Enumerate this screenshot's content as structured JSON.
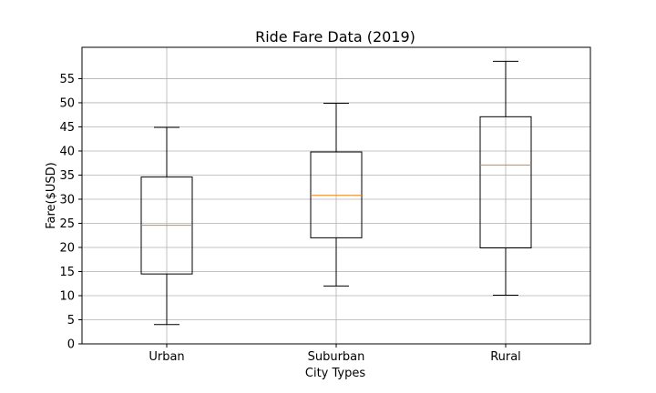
{
  "chart_data": {
    "type": "box",
    "title": "Ride Fare Data (2019)",
    "xlabel": "City Types",
    "ylabel": "Fare($USD)",
    "categories": [
      "Urban",
      "Suburban",
      "Rural"
    ],
    "boxes": [
      {
        "label": "Urban",
        "whisker_low": 4,
        "q1": 14.5,
        "median": 24.6,
        "q3": 34.6,
        "whisker_high": 44.9
      },
      {
        "label": "Suburban",
        "whisker_low": 12,
        "q1": 22,
        "median": 30.8,
        "q3": 39.8,
        "whisker_high": 49.9
      },
      {
        "label": "Rural",
        "whisker_low": 10.1,
        "q1": 19.9,
        "median": 37.1,
        "q3": 47.1,
        "whisker_high": 58.6
      }
    ],
    "yticks": [
      0,
      5,
      10,
      15,
      20,
      25,
      30,
      35,
      40,
      45,
      50,
      55
    ],
    "ylim": [
      0,
      61.5
    ],
    "grid": true,
    "colors": {
      "box": "#000000",
      "median": "#e8801a",
      "grid": "#b0b0b0"
    }
  }
}
